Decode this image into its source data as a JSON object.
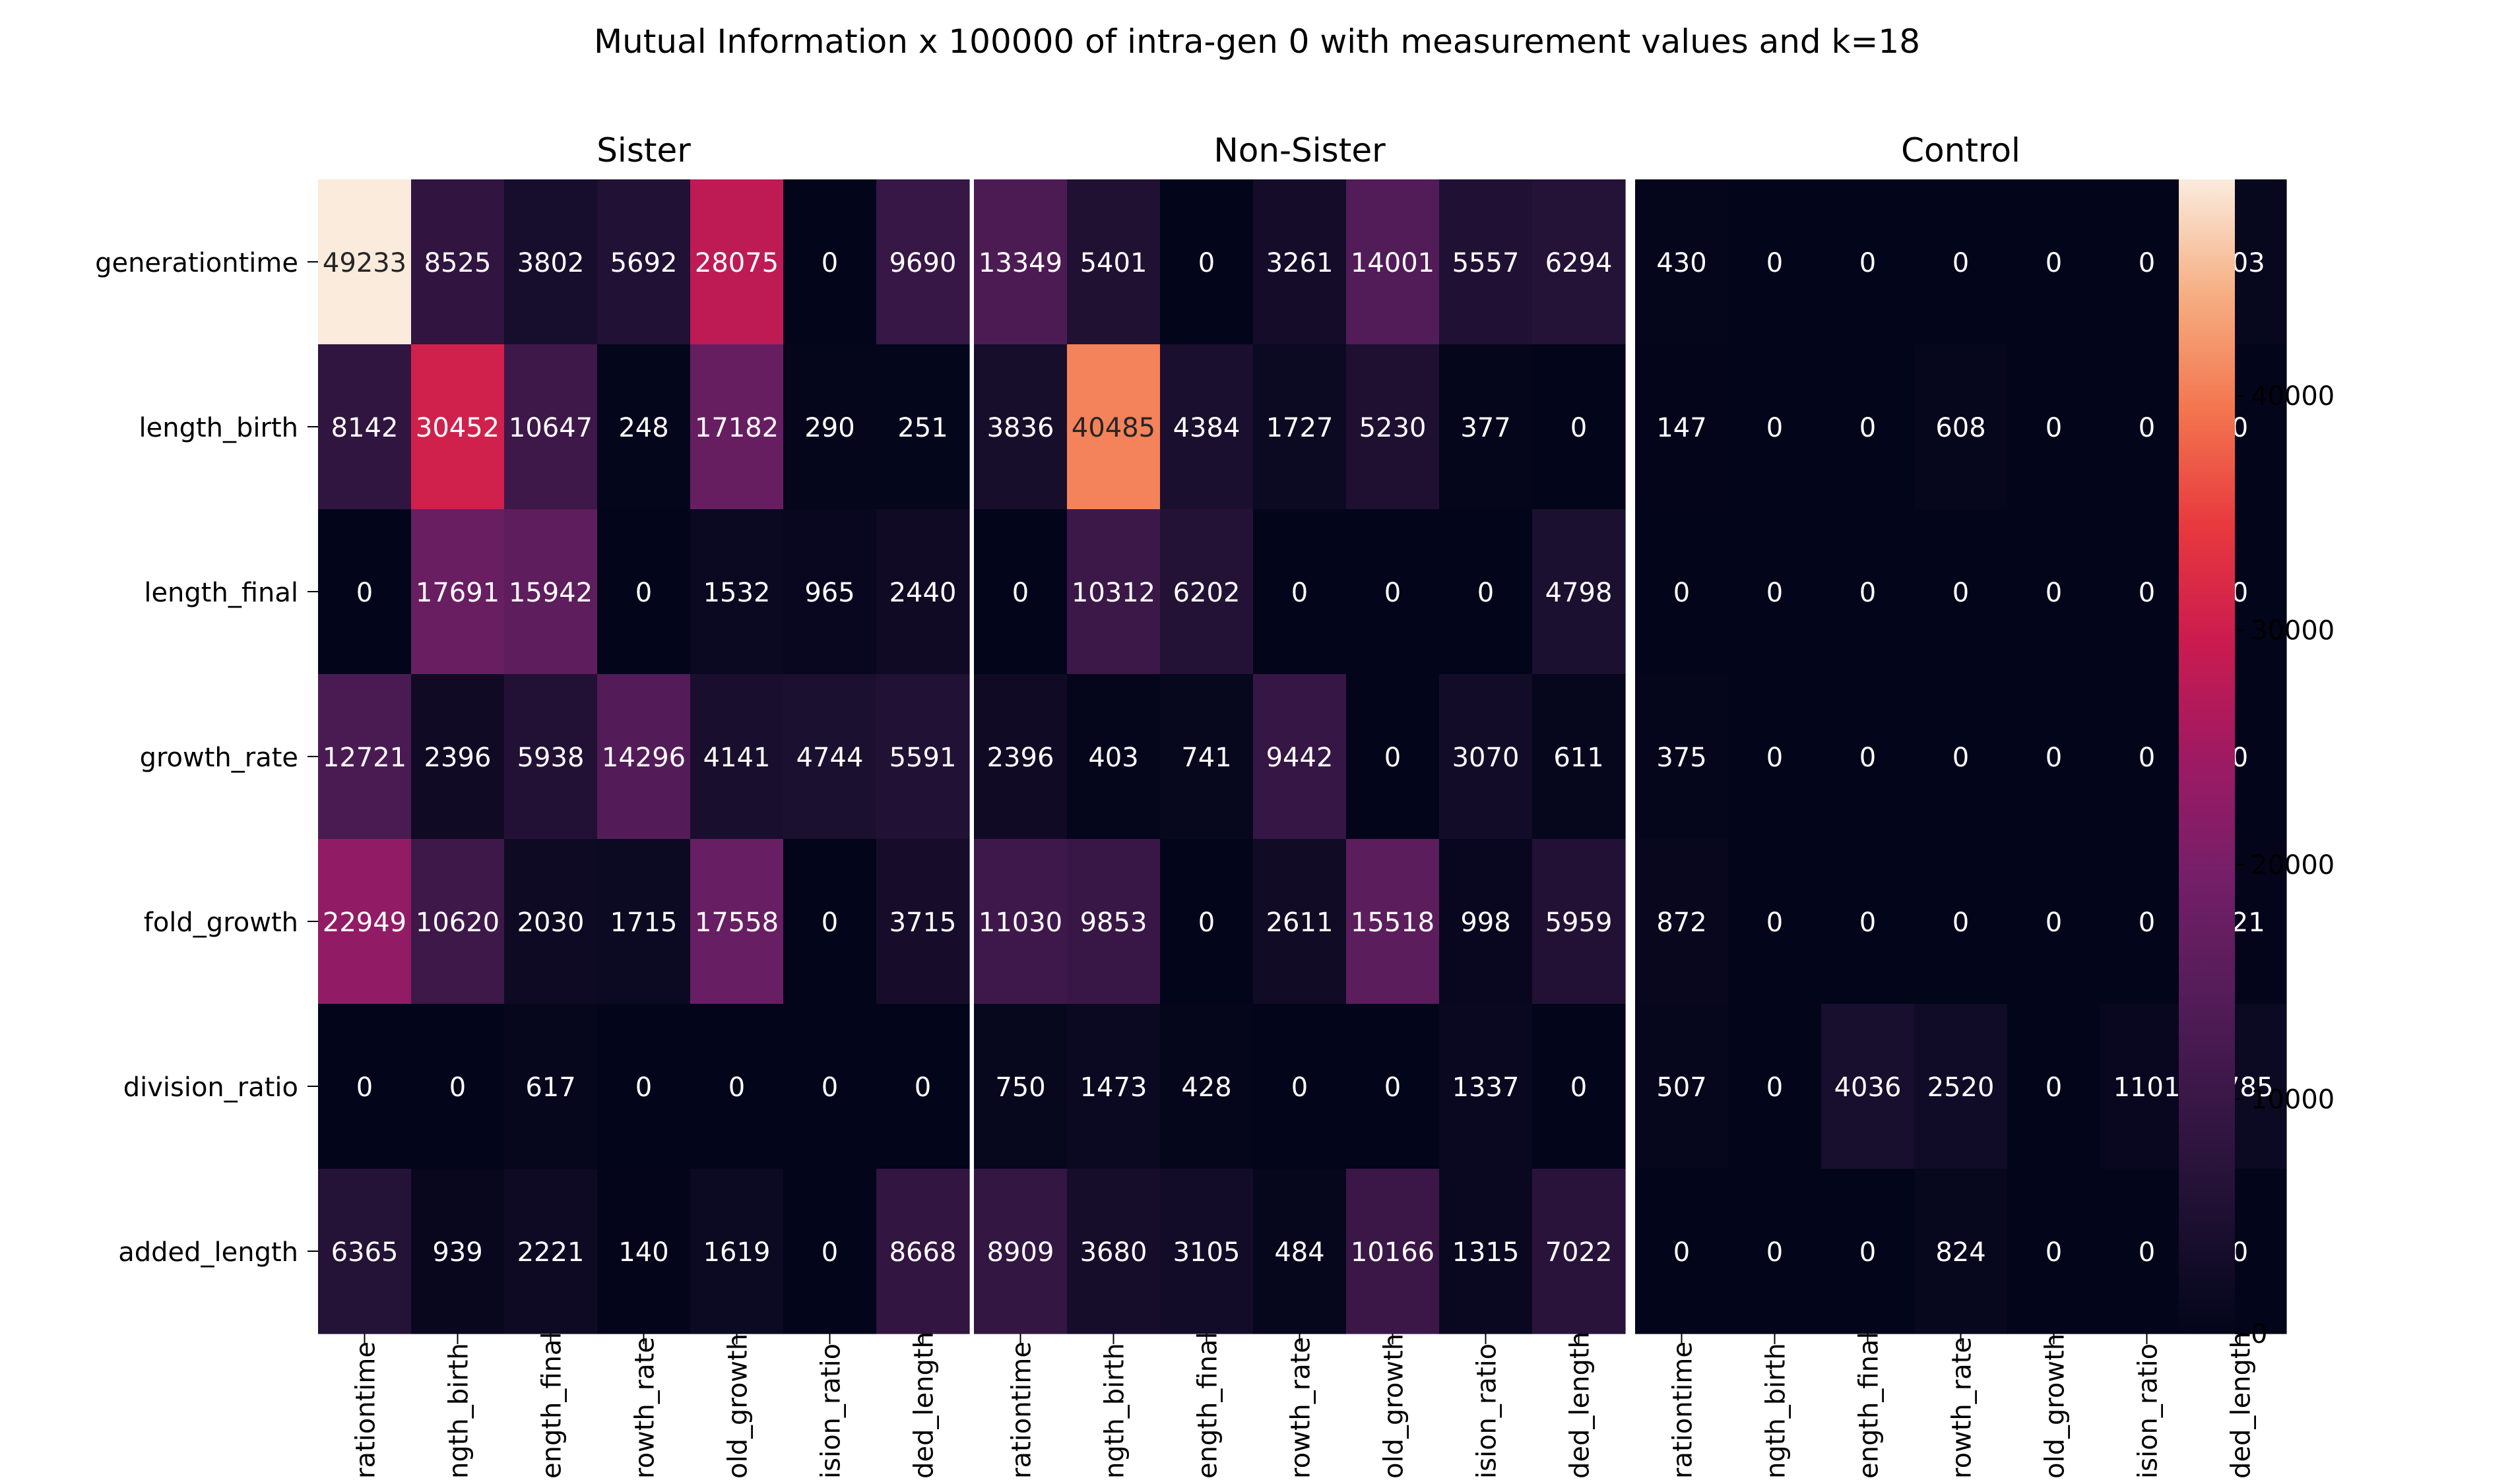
{
  "chart_data": {
    "type": "heatmap",
    "title": "Mutual Information x 100000 of intra-gen 0 with measurement values and k=18",
    "rows": [
      "generationtime",
      "length_birth",
      "length_final",
      "growth_rate",
      "fold_growth",
      "division_ratio",
      "added_length"
    ],
    "x_tick_labels": [
      "rationtime",
      "ngth_birth",
      "ength_final",
      "rowth_rate",
      "old_growth",
      "ision_ratio",
      "ded_length"
    ],
    "colorbar": {
      "min": 0,
      "max": 49233,
      "ticks": [
        0,
        10000,
        20000,
        30000,
        40000
      ],
      "colormap": "rocket"
    },
    "panels": [
      {
        "name": "Sister",
        "values": [
          [
            49233,
            8525,
            3802,
            5692,
            28075,
            0,
            9690
          ],
          [
            8142,
            30452,
            10647,
            248,
            17182,
            290,
            251
          ],
          [
            0,
            17691,
            15942,
            0,
            1532,
            965,
            2440
          ],
          [
            12721,
            2396,
            5938,
            14296,
            4141,
            4744,
            5591
          ],
          [
            22949,
            10620,
            2030,
            1715,
            17558,
            0,
            3715
          ],
          [
            0,
            0,
            617,
            0,
            0,
            0,
            0
          ],
          [
            6365,
            939,
            2221,
            140,
            1619,
            0,
            8668
          ]
        ]
      },
      {
        "name": "Non-Sister",
        "values": [
          [
            13349,
            5401,
            0,
            3261,
            14001,
            5557,
            6294
          ],
          [
            3836,
            40485,
            4384,
            1727,
            5230,
            377,
            0
          ],
          [
            0,
            10312,
            6202,
            0,
            0,
            0,
            4798
          ],
          [
            2396,
            403,
            741,
            9442,
            0,
            3070,
            611
          ],
          [
            11030,
            9853,
            0,
            2611,
            15518,
            998,
            5959
          ],
          [
            750,
            1473,
            428,
            0,
            0,
            1337,
            0
          ],
          [
            8909,
            3680,
            3105,
            484,
            10166,
            1315,
            7022
          ]
        ]
      },
      {
        "name": "Control",
        "values": [
          [
            430,
            0,
            0,
            0,
            0,
            0,
            703
          ],
          [
            147,
            0,
            0,
            608,
            0,
            0,
            0
          ],
          [
            0,
            0,
            0,
            0,
            0,
            0,
            0
          ],
          [
            375,
            0,
            0,
            0,
            0,
            0,
            0
          ],
          [
            872,
            0,
            0,
            0,
            0,
            0,
            121
          ],
          [
            507,
            0,
            4036,
            2520,
            0,
            1101,
            1785
          ],
          [
            0,
            0,
            0,
            824,
            0,
            0,
            0
          ]
        ]
      }
    ]
  }
}
